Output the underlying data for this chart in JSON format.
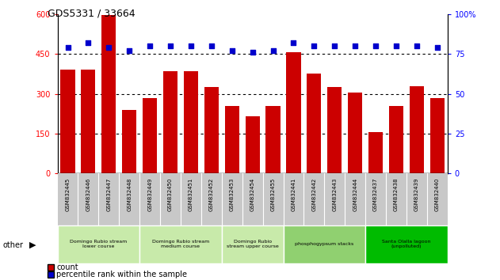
{
  "title": "GDS5331 / 33664",
  "samples": [
    "GSM832445",
    "GSM832446",
    "GSM832447",
    "GSM832448",
    "GSM832449",
    "GSM832450",
    "GSM832451",
    "GSM832452",
    "GSM832453",
    "GSM832454",
    "GSM832455",
    "GSM832441",
    "GSM832442",
    "GSM832443",
    "GSM832444",
    "GSM832437",
    "GSM832438",
    "GSM832439",
    "GSM832440"
  ],
  "counts": [
    390,
    390,
    595,
    240,
    285,
    385,
    385,
    325,
    255,
    215,
    255,
    455,
    375,
    325,
    305,
    155,
    255,
    330,
    285
  ],
  "percentiles": [
    79,
    82,
    79,
    77,
    80,
    80,
    80,
    80,
    77,
    76,
    77,
    82,
    80,
    80,
    80,
    80,
    80,
    80,
    79
  ],
  "bar_color": "#cc0000",
  "dot_color": "#0000cc",
  "ylim_left": [
    0,
    600
  ],
  "ylim_right": [
    0,
    100
  ],
  "yticks_left": [
    0,
    150,
    300,
    450,
    600
  ],
  "yticks_right": [
    0,
    25,
    50,
    75,
    100
  ],
  "groups": [
    {
      "label": "Domingo Rubio stream\nlower course",
      "start": 0,
      "end": 4,
      "color": "#c8eaaa"
    },
    {
      "label": "Domingo Rubio stream\nmedium course",
      "start": 4,
      "end": 8,
      "color": "#c8eaaa"
    },
    {
      "label": "Domingo Rubio\nstream upper course",
      "start": 8,
      "end": 11,
      "color": "#c8eaaa"
    },
    {
      "label": "phosphogypsum stacks",
      "start": 11,
      "end": 15,
      "color": "#90d070"
    },
    {
      "label": "Santa Olalla lagoon\n(unpolluted)",
      "start": 15,
      "end": 19,
      "color": "#00bb00"
    }
  ],
  "other_label": "other",
  "legend_count": "count",
  "legend_percentile": "percentile rank within the sample",
  "tick_label_bg": "#c8c8c8",
  "dot_percentile_map": {
    "77": 77,
    "79": 79,
    "80": 80,
    "82": 82
  }
}
